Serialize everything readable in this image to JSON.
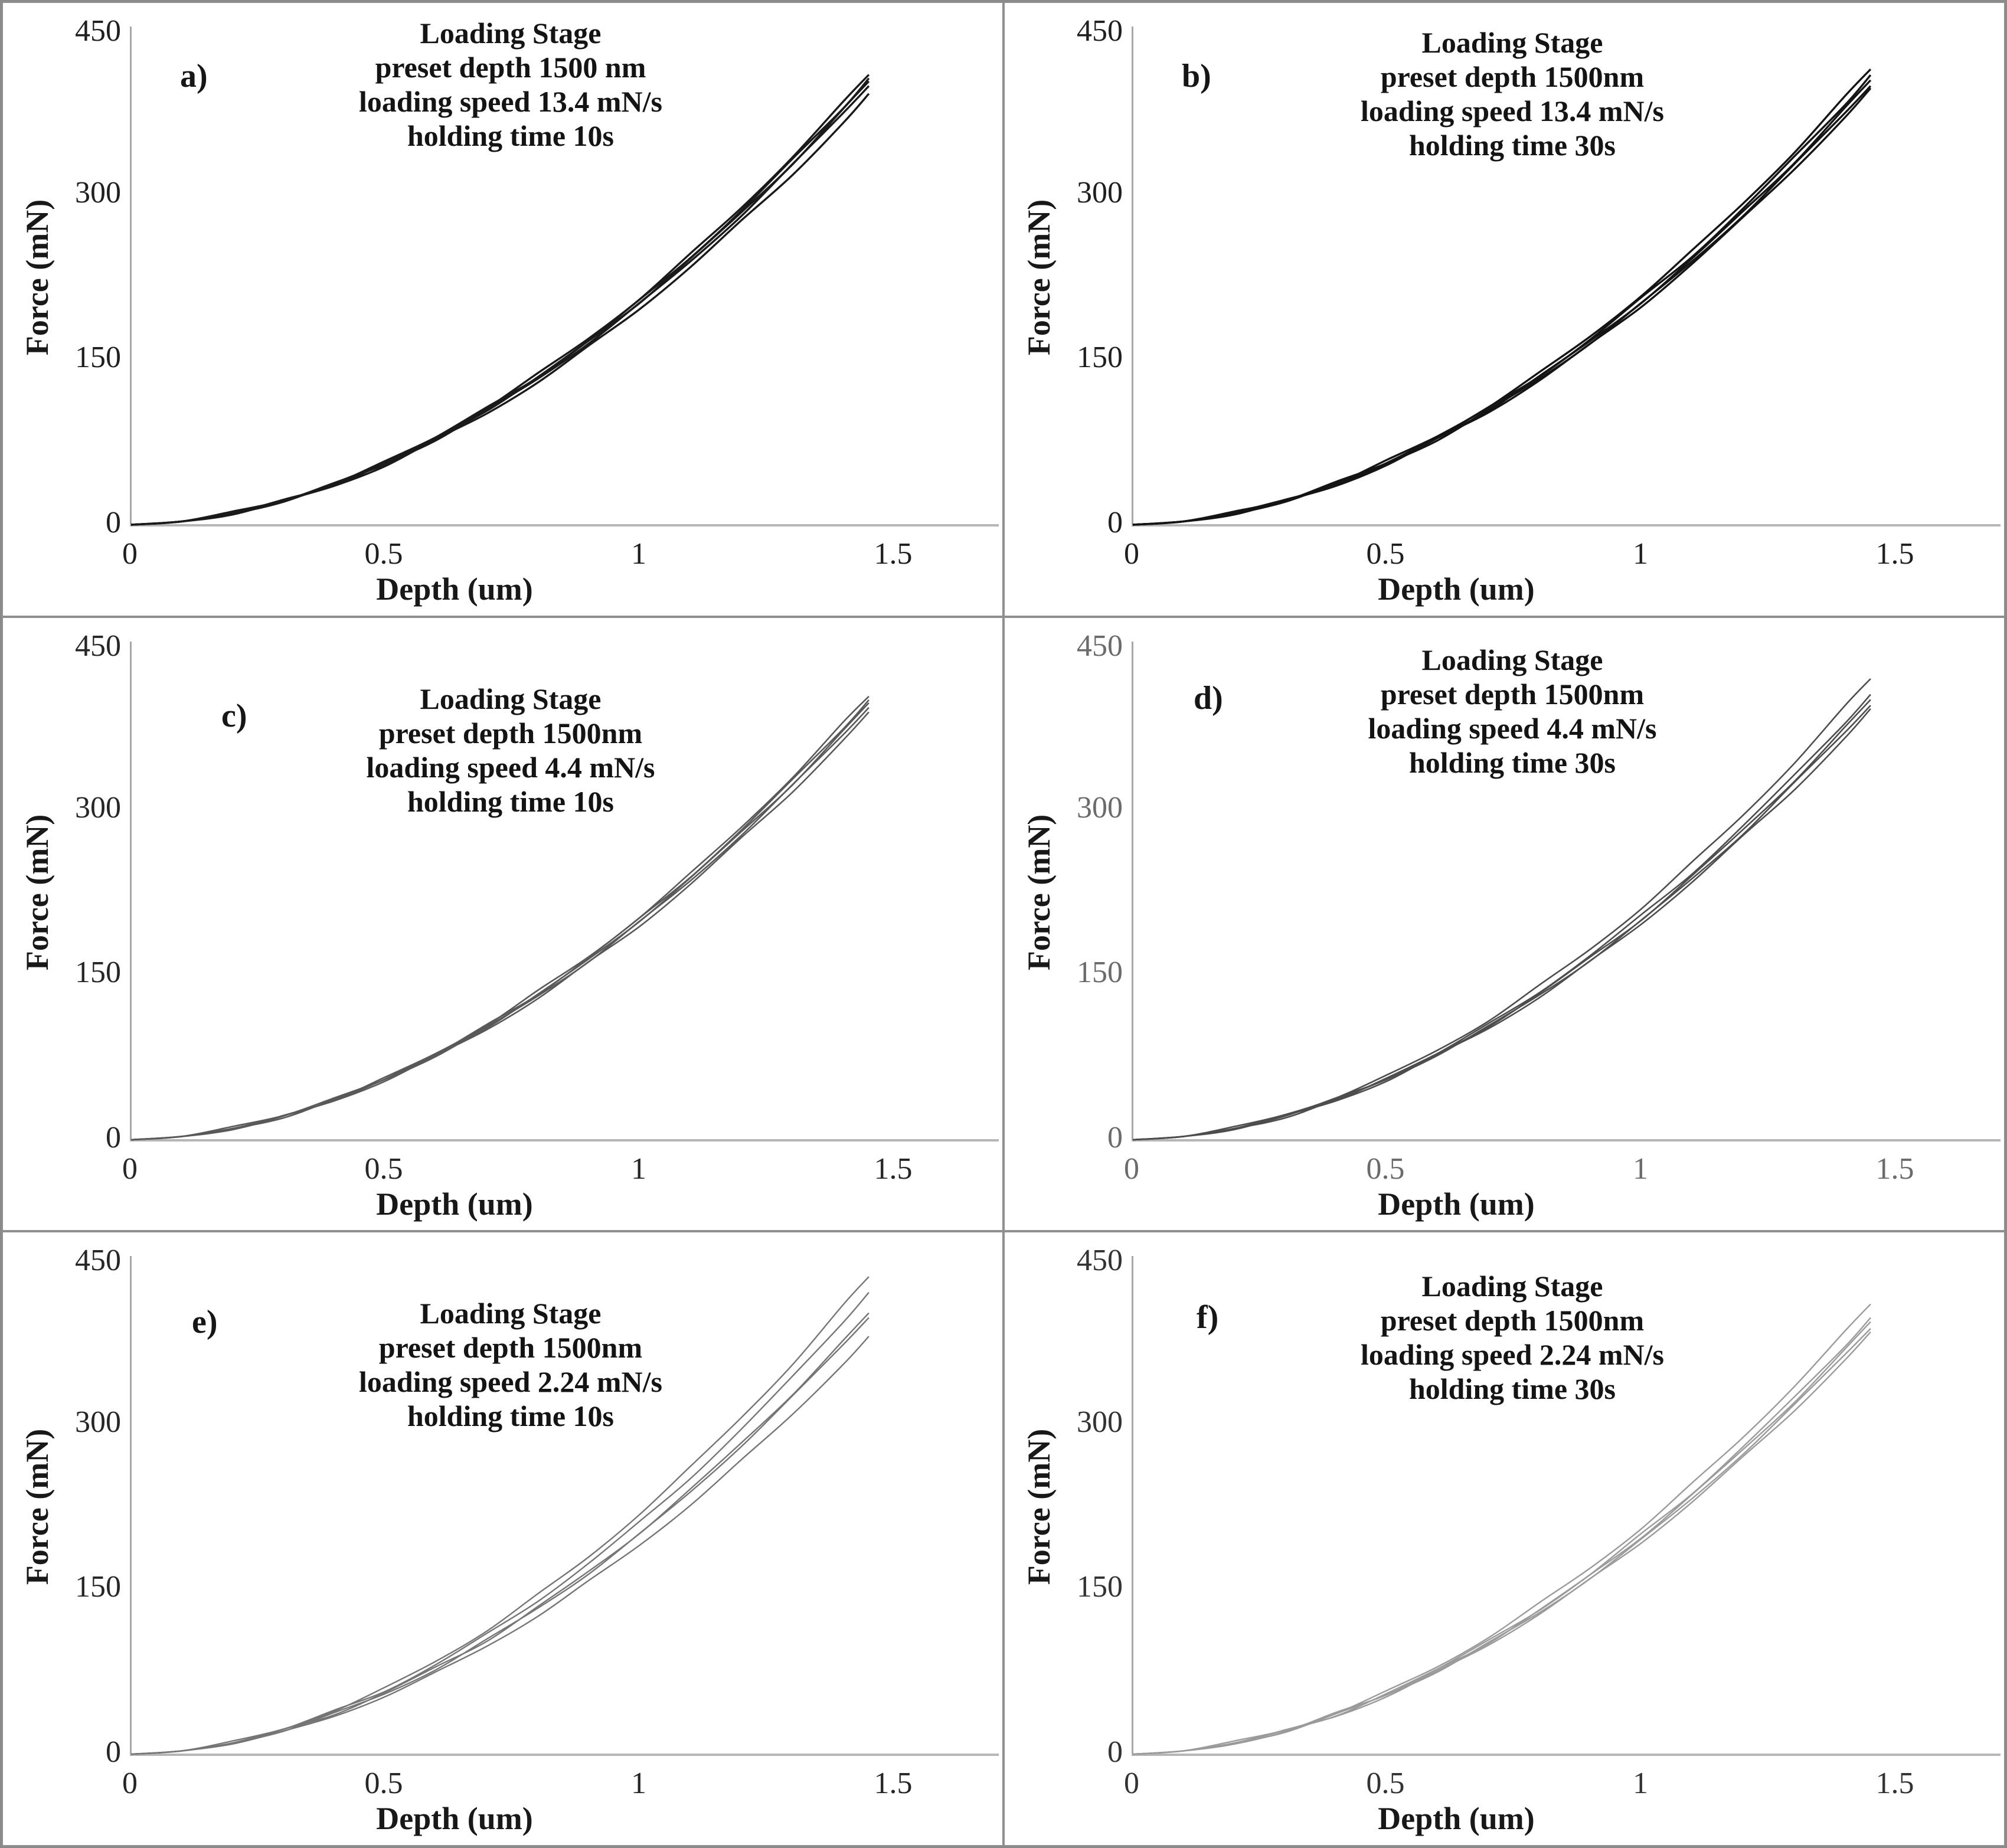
{
  "figure": {
    "description": "Six-panel figure of nanoindentation loading-stage force vs depth curves",
    "border_color": "#8a8a8a",
    "background": "#ffffff"
  },
  "axes": {
    "ylabel": "Force (mN)",
    "xlabel": "Depth (um)",
    "ytick_labels": [
      "450",
      "300",
      "150",
      "0"
    ],
    "xtick_labels": [
      "0",
      "0.5",
      "1",
      "1.5"
    ]
  },
  "chart_data": [
    {
      "type": "line",
      "letter": "a)",
      "title_lines": [
        "Loading Stage",
        "preset depth 1500 nm",
        "loading speed 13.4 mN/s",
        "holding time 10s"
      ],
      "xlabel": "Depth (um)",
      "ylabel": "Force (mN)",
      "xlim": [
        0,
        1.5
      ],
      "ylim": [
        0,
        450
      ],
      "xticks": [
        0,
        0.5,
        1,
        1.5
      ],
      "yticks": [
        0,
        150,
        300,
        450
      ],
      "grid": false,
      "legend": "none",
      "line_color": "#1a1a1a",
      "tick_color": "#1f1f1f",
      "line_width": 3.4,
      "x": [
        0,
        0.1,
        0.2,
        0.3,
        0.4,
        0.5,
        0.6,
        0.7,
        0.8,
        0.9,
        1.0,
        1.1,
        1.2,
        1.3,
        1.4,
        1.45
      ],
      "series": [
        [
          0,
          3,
          11,
          22,
          38,
          57,
          80,
          107,
          137,
          170,
          206,
          246,
          289,
          335,
          384,
          410
        ],
        [
          0,
          3,
          11,
          22,
          37,
          56,
          80,
          106,
          135,
          168,
          204,
          244,
          286,
          332,
          380,
          406
        ],
        [
          0,
          3,
          10,
          22,
          37,
          56,
          79,
          105,
          134,
          167,
          203,
          242,
          284,
          329,
          378,
          403
        ],
        [
          0,
          3,
          10,
          22,
          37,
          56,
          78,
          104,
          133,
          166,
          201,
          240,
          282,
          327,
          375,
          400
        ],
        [
          0,
          3,
          10,
          21,
          36,
          54,
          77,
          102,
          130,
          162,
          197,
          235,
          276,
          319,
          366,
          391
        ]
      ]
    },
    {
      "type": "line",
      "letter": "b)",
      "title_lines": [
        "Loading Stage",
        "preset depth 1500nm",
        "loading speed 13.4 mN/s",
        "holding time 30s"
      ],
      "xlabel": "Depth (um)",
      "ylabel": "Force (mN)",
      "xlim": [
        0,
        1.5
      ],
      "ylim": [
        0,
        450
      ],
      "xticks": [
        0,
        0.5,
        1,
        1.5
      ],
      "yticks": [
        0,
        150,
        300,
        450
      ],
      "grid": false,
      "legend": "none",
      "line_color": "#141414",
      "tick_color": "#1f1f1f",
      "line_width": 3.4,
      "x": [
        0,
        0.1,
        0.2,
        0.3,
        0.4,
        0.5,
        0.6,
        0.7,
        0.8,
        0.9,
        1.0,
        1.1,
        1.2,
        1.3,
        1.4,
        1.45
      ],
      "series": [
        [
          0,
          3,
          11,
          22,
          38,
          58,
          81,
          108,
          138,
          172,
          209,
          249,
          293,
          339,
          389,
          415
        ],
        [
          0,
          3,
          11,
          22,
          38,
          57,
          80,
          106,
          136,
          169,
          206,
          245,
          288,
          334,
          383,
          409
        ],
        [
          0,
          3,
          11,
          22,
          37,
          56,
          79,
          105,
          135,
          167,
          203,
          242,
          285,
          330,
          379,
          404
        ],
        [
          0,
          3,
          10,
          22,
          37,
          56,
          78,
          104,
          133,
          166,
          201,
          240,
          282,
          327,
          375,
          400
        ],
        [
          0,
          3,
          10,
          21,
          36,
          55,
          78,
          103,
          132,
          164,
          199,
          238,
          279,
          324,
          371,
          396
        ]
      ]
    },
    {
      "type": "line",
      "letter": "c)",
      "title_lines": [
        "Loading Stage",
        "preset depth 1500nm",
        "loading speed 4.4 mN/s",
        "holding time 10s"
      ],
      "xlabel": "Depth (um)",
      "ylabel": "Force (mN)",
      "xlim": [
        0,
        1.5
      ],
      "ylim": [
        0,
        450
      ],
      "xticks": [
        0,
        0.5,
        1,
        1.5
      ],
      "yticks": [
        0,
        150,
        300,
        450
      ],
      "grid": false,
      "legend": "none",
      "line_color": "#595959",
      "tick_color": "#262626",
      "line_width": 2.6,
      "x": [
        0,
        0.1,
        0.2,
        0.3,
        0.4,
        0.5,
        0.6,
        0.7,
        0.8,
        0.9,
        1.0,
        1.1,
        1.2,
        1.3,
        1.4,
        1.45
      ],
      "series": [
        [
          0,
          3,
          11,
          22,
          37,
          56,
          79,
          105,
          135,
          167,
          203,
          242,
          285,
          330,
          379,
          404
        ],
        [
          0,
          3,
          10,
          22,
          37,
          56,
          78,
          104,
          133,
          166,
          201,
          240,
          282,
          327,
          375,
          400
        ],
        [
          0,
          3,
          10,
          21,
          37,
          55,
          78,
          103,
          132,
          164,
          200,
          238,
          280,
          324,
          372,
          397
        ],
        [
          0,
          3,
          10,
          21,
          36,
          55,
          77,
          102,
          131,
          163,
          198,
          236,
          278,
          322,
          369,
          394
        ],
        [
          0,
          3,
          10,
          21,
          36,
          54,
          76,
          101,
          129,
          161,
          195,
          233,
          274,
          317,
          364,
          388
        ]
      ]
    },
    {
      "type": "line",
      "letter": "d)",
      "title_lines": [
        "Loading Stage",
        "preset depth 1500nm",
        "loading speed 4.4 mN/s",
        "holding time 30s"
      ],
      "xlabel": "Depth (um)",
      "ylabel": "Force (mN)",
      "xlim": [
        0,
        1.5
      ],
      "ylim": [
        0,
        450
      ],
      "xticks": [
        0,
        0.5,
        1,
        1.5
      ],
      "yticks": [
        0,
        150,
        300,
        450
      ],
      "grid": false,
      "legend": "none",
      "line_color": "#4d4d4d",
      "tick_color": "#6b6b6b",
      "line_width": 2.6,
      "x": [
        0,
        0.1,
        0.2,
        0.3,
        0.4,
        0.5,
        0.6,
        0.7,
        0.8,
        0.9,
        1.0,
        1.1,
        1.2,
        1.3,
        1.4,
        1.45
      ],
      "series": [
        [
          0,
          3,
          11,
          23,
          39,
          58,
          82,
          109,
          140,
          174,
          211,
          252,
          296,
          343,
          394,
          420
        ],
        [
          0,
          3,
          11,
          22,
          37,
          56,
          79,
          105,
          135,
          168,
          204,
          243,
          286,
          331,
          380,
          405
        ],
        [
          0,
          3,
          10,
          22,
          37,
          56,
          78,
          104,
          133,
          166,
          201,
          240,
          282,
          327,
          375,
          400
        ],
        [
          0,
          3,
          10,
          21,
          36,
          55,
          78,
          103,
          132,
          164,
          199,
          238,
          279,
          324,
          371,
          396
        ],
        [
          0,
          3,
          10,
          21,
          36,
          54,
          77,
          102,
          130,
          162,
          197,
          235,
          276,
          319,
          366,
          391
        ]
      ]
    },
    {
      "type": "line",
      "letter": "e)",
      "title_lines": [
        "Loading Stage",
        "preset depth 1500nm",
        "loading speed 2.24 mN/s",
        "holding time 10s"
      ],
      "xlabel": "Depth (um)",
      "ylabel": "Force (mN)",
      "xlim": [
        0,
        1.5
      ],
      "ylim": [
        0,
        450
      ],
      "xticks": [
        0,
        0.5,
        1,
        1.5
      ],
      "yticks": [
        0,
        150,
        300,
        450
      ],
      "grid": false,
      "legend": "none",
      "line_color": "#757575",
      "tick_color": "#262626",
      "line_width": 2.4,
      "x": [
        0,
        0.1,
        0.2,
        0.3,
        0.4,
        0.5,
        0.6,
        0.7,
        0.8,
        0.9,
        1.0,
        1.1,
        1.2,
        1.3,
        1.4,
        1.45
      ],
      "series": [
        [
          0,
          3,
          11,
          23,
          40,
          60,
          85,
          113,
          145,
          180,
          219,
          261,
          307,
          355,
          408,
          435
        ],
        [
          0,
          3,
          11,
          23,
          39,
          58,
          82,
          109,
          140,
          174,
          211,
          252,
          296,
          343,
          394,
          420
        ],
        [
          0,
          3,
          10,
          22,
          37,
          56,
          79,
          104,
          134,
          166,
          202,
          241,
          283,
          328,
          376,
          401
        ],
        [
          0,
          3,
          10,
          22,
          37,
          55,
          78,
          104,
          133,
          165,
          200,
          239,
          281,
          325,
          373,
          398
        ],
        [
          0,
          3,
          10,
          20,
          35,
          53,
          74,
          99,
          126,
          157,
          191,
          227,
          267,
          310,
          355,
          379
        ]
      ]
    },
    {
      "type": "line",
      "letter": "f)",
      "title_lines": [
        "Loading Stage",
        "preset depth 1500nm",
        "loading speed 2.24 mN/s",
        "holding time 30s"
      ],
      "xlabel": "Depth (um)",
      "ylabel": "Force (mN)",
      "xlim": [
        0,
        1.5
      ],
      "ylim": [
        0,
        450
      ],
      "xticks": [
        0,
        0.5,
        1,
        1.5
      ],
      "yticks": [
        0,
        150,
        300,
        450
      ],
      "grid": false,
      "legend": "none",
      "line_color": "#9a9a9a",
      "tick_color": "#333333",
      "line_width": 2.4,
      "x": [
        0,
        0.1,
        0.2,
        0.3,
        0.4,
        0.5,
        0.6,
        0.7,
        0.8,
        0.9,
        1.0,
        1.1,
        1.2,
        1.3,
        1.4,
        1.45
      ],
      "series": [
        [
          0,
          3,
          11,
          22,
          38,
          57,
          80,
          107,
          137,
          170,
          206,
          246,
          289,
          335,
          384,
          410
        ],
        [
          0,
          3,
          10,
          21,
          37,
          55,
          78,
          103,
          132,
          164,
          200,
          238,
          280,
          324,
          372,
          397
        ],
        [
          0,
          3,
          10,
          21,
          36,
          55,
          77,
          102,
          131,
          163,
          198,
          236,
          277,
          321,
          368,
          393
        ],
        [
          0,
          3,
          10,
          21,
          36,
          54,
          76,
          101,
          129,
          161,
          195,
          233,
          274,
          317,
          364,
          388
        ],
        [
          0,
          3,
          10,
          21,
          35,
          53,
          75,
          100,
          128,
          159,
          193,
          230,
          270,
          313,
          359,
          383
        ]
      ]
    }
  ]
}
